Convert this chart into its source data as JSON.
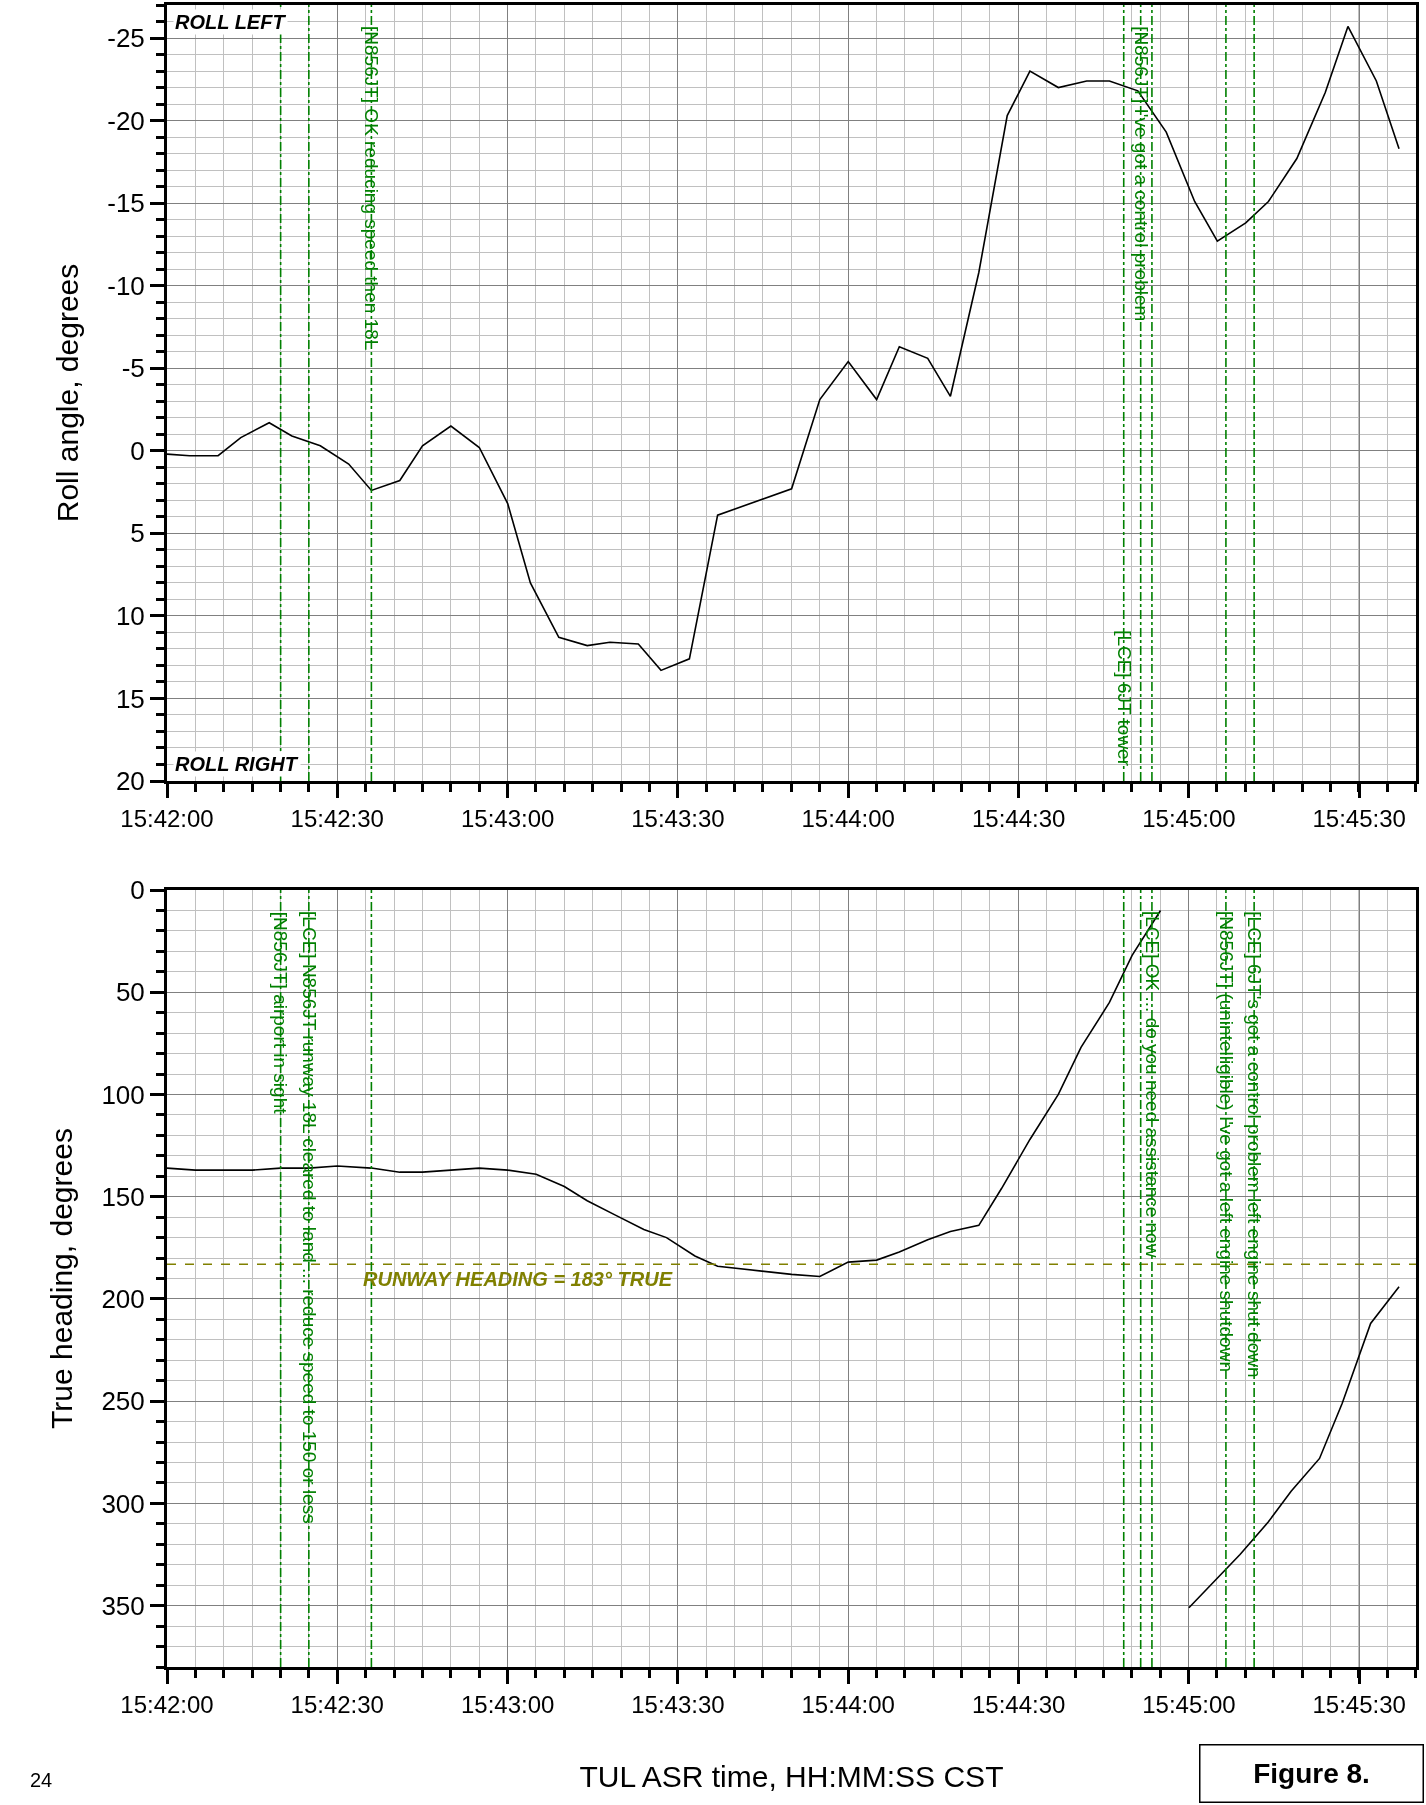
{
  "chart_data": [
    {
      "type": "line",
      "ylabel": "Roll angle, degrees",
      "annotations": [
        "ROLL LEFT",
        "ROLL RIGHT"
      ],
      "xlim": [
        15.7,
        15.76111
      ],
      "xticks": [
        {
          "value": 15.7,
          "label": "15:42:00"
        },
        {
          "value": 15.70833,
          "label": "15:42:30"
        },
        {
          "value": 15.71667,
          "label": "15:43:00"
        },
        {
          "value": 15.725,
          "label": "15:43:30"
        },
        {
          "value": 15.73333,
          "label": "15:44:00"
        },
        {
          "value": 15.74167,
          "label": "15:44:30"
        },
        {
          "value": 15.75,
          "label": "15:45:00"
        },
        {
          "value": 15.75833,
          "label": "15:45:30"
        }
      ],
      "ylim": [
        20,
        -27
      ],
      "yticks": [
        -25,
        -20,
        -15,
        -10,
        -5,
        0,
        5,
        10,
        15,
        20
      ],
      "grid": true,
      "marker": "none",
      "series": [
        {
          "color": "#000000",
          "line_style": "solid",
          "x": [
            15.7,
            15.70111,
            15.7025,
            15.70361,
            15.705,
            15.70611,
            15.7075,
            15.70889,
            15.71,
            15.71139,
            15.7125,
            15.71389,
            15.71528,
            15.71667,
            15.71778,
            15.71917,
            15.72056,
            15.72167,
            15.72306,
            15.72417,
            15.72556,
            15.72694,
            15.73056,
            15.73194,
            15.73333,
            15.73472,
            15.73583,
            15.73722,
            15.73833,
            15.73972,
            15.74111,
            15.74222,
            15.74361,
            15.745,
            15.74611,
            15.7475,
            15.74889,
            15.75028,
            15.75139,
            15.75278,
            15.75389,
            15.75528,
            15.75667,
            15.75778,
            15.75917,
            15.76028
          ],
          "values": [
            0.2,
            0.3,
            0.3,
            -0.8,
            -1.7,
            -0.9,
            -0.3,
            0.8,
            2.4,
            1.8,
            -0.3,
            -1.5,
            -0.2,
            3.2,
            8.0,
            11.3,
            11.8,
            11.6,
            11.7,
            13.3,
            12.6,
            3.9,
            2.3,
            -3.1,
            -5.4,
            -3.1,
            -6.3,
            -5.6,
            -3.3,
            -10.8,
            -20.3,
            -23.0,
            -22.0,
            -22.4,
            -22.4,
            -21.8,
            -19.3,
            -15.1,
            -12.7,
            -13.8,
            -15.1,
            -17.7,
            -21.7,
            -25.7,
            -22.4,
            -18.3
          ]
        }
      ],
      "ref_lines": [
        {
          "axis": "x",
          "value": 15.70556,
          "label": null,
          "color": "#008000",
          "line_style": "dashdot"
        },
        {
          "axis": "x",
          "value": 15.70694,
          "label": null,
          "color": "#008000",
          "line_style": "dashdot"
        },
        {
          "axis": "x",
          "value": 15.71,
          "label": "[N856JT] OK reducing speed then 18L",
          "color": "#008000",
          "line_style": "dashdot"
        },
        {
          "axis": "x",
          "value": 15.74681,
          "label": "[LCE] 6JT tower",
          "color": "#008000",
          "line_style": "dashdot"
        },
        {
          "axis": "x",
          "value": 15.74764,
          "label": "[N856JT] I've got a control problem",
          "color": "#008000",
          "line_style": "dashdot"
        },
        {
          "axis": "x",
          "value": 15.74819,
          "label": null,
          "color": "#008000",
          "line_style": "dashdot"
        },
        {
          "axis": "x",
          "value": 15.75181,
          "label": null,
          "color": "#008000",
          "line_style": "dashdot"
        },
        {
          "axis": "x",
          "value": 15.75319,
          "label": null,
          "color": "#008000",
          "line_style": "dashdot"
        }
      ]
    },
    {
      "type": "line",
      "xlabel": "TUL ASR time, HH:MM:SS CST",
      "ylabel": "True heading, degrees",
      "annotations": [
        "24",
        "Figure 8."
      ],
      "xlim": [
        15.7,
        15.76111
      ],
      "xticks": [
        {
          "value": 15.7,
          "label": "15:42:00"
        },
        {
          "value": 15.70833,
          "label": "15:42:30"
        },
        {
          "value": 15.71667,
          "label": "15:43:00"
        },
        {
          "value": 15.725,
          "label": "15:43:30"
        },
        {
          "value": 15.73333,
          "label": "15:44:00"
        },
        {
          "value": 15.74167,
          "label": "15:44:30"
        },
        {
          "value": 15.75,
          "label": "15:45:00"
        },
        {
          "value": 15.75833,
          "label": "15:45:30"
        }
      ],
      "ylim": [
        380,
        0
      ],
      "yticks": [
        0,
        50,
        100,
        150,
        200,
        250,
        300,
        350
      ],
      "grid": true,
      "marker": "none",
      "series": [
        {
          "color": "#000000",
          "line_style": "solid",
          "x": [
            15.7,
            15.70139,
            15.70278,
            15.70417,
            15.70556,
            15.70694,
            15.70833,
            15.71,
            15.71139,
            15.7125,
            15.71389,
            15.71528,
            15.71667,
            15.71806,
            15.71944,
            15.72056,
            15.72194,
            15.72333,
            15.72444,
            15.72583,
            15.72694,
            15.73056,
            15.73194,
            15.73333,
            15.73472,
            15.73583,
            15.73722,
            15.73833,
            15.73972,
            15.74083,
            15.74222,
            15.74361,
            15.74472,
            15.74611,
            15.74722,
            15.74861,
            15.74917,
            15.75,
            15.7525,
            15.75389,
            15.755,
            15.75639,
            15.7575,
            15.75889,
            15.76028
          ],
          "values": [
            136,
            137,
            137,
            137,
            136,
            136,
            135,
            136,
            138,
            138,
            137,
            136,
            137,
            139,
            145,
            152,
            159,
            166,
            170,
            179,
            184,
            188,
            189,
            182,
            181,
            177,
            171,
            167,
            164,
            146,
            122,
            100,
            77,
            55,
            32,
            10,
            null,
            351,
            325,
            309,
            294,
            278,
            251,
            212,
            194
          ]
        }
      ],
      "ref_lines": [
        {
          "axis": "y",
          "value": 183,
          "label": "RUNWAY HEADING = 183° TRUE",
          "color": "#808000",
          "line_style": "dashed"
        },
        {
          "axis": "x",
          "value": 15.70556,
          "label": "[N856JT] airport in sight",
          "color": "#008000",
          "line_style": "dashdot"
        },
        {
          "axis": "x",
          "value": 15.70694,
          "label": "[LCE] N856JT runway 18L cleared to land ... reduce speed to 150 or less",
          "color": "#008000",
          "line_style": "dashdot"
        },
        {
          "axis": "x",
          "value": 15.71,
          "label": null,
          "color": "#008000",
          "line_style": "dashdot"
        },
        {
          "axis": "x",
          "value": 15.74681,
          "label": null,
          "color": "#008000",
          "line_style": "dashdot"
        },
        {
          "axis": "x",
          "value": 15.74764,
          "label": null,
          "color": "#008000",
          "line_style": "dashdot"
        },
        {
          "axis": "x",
          "value": 15.74819,
          "label": "[LCE] OK ... do you need assistance now",
          "color": "#008000",
          "line_style": "dashdot"
        },
        {
          "axis": "x",
          "value": 15.75181,
          "label": "[N856JT] (unintelligible) I've got a left engine shutdown",
          "color": "#008000",
          "line_style": "dashdot"
        },
        {
          "axis": "x",
          "value": 15.75319,
          "label": "[LCE] 6JT's got a control problem left engine shut down",
          "color": "#008000",
          "line_style": "dashdot"
        }
      ]
    }
  ]
}
